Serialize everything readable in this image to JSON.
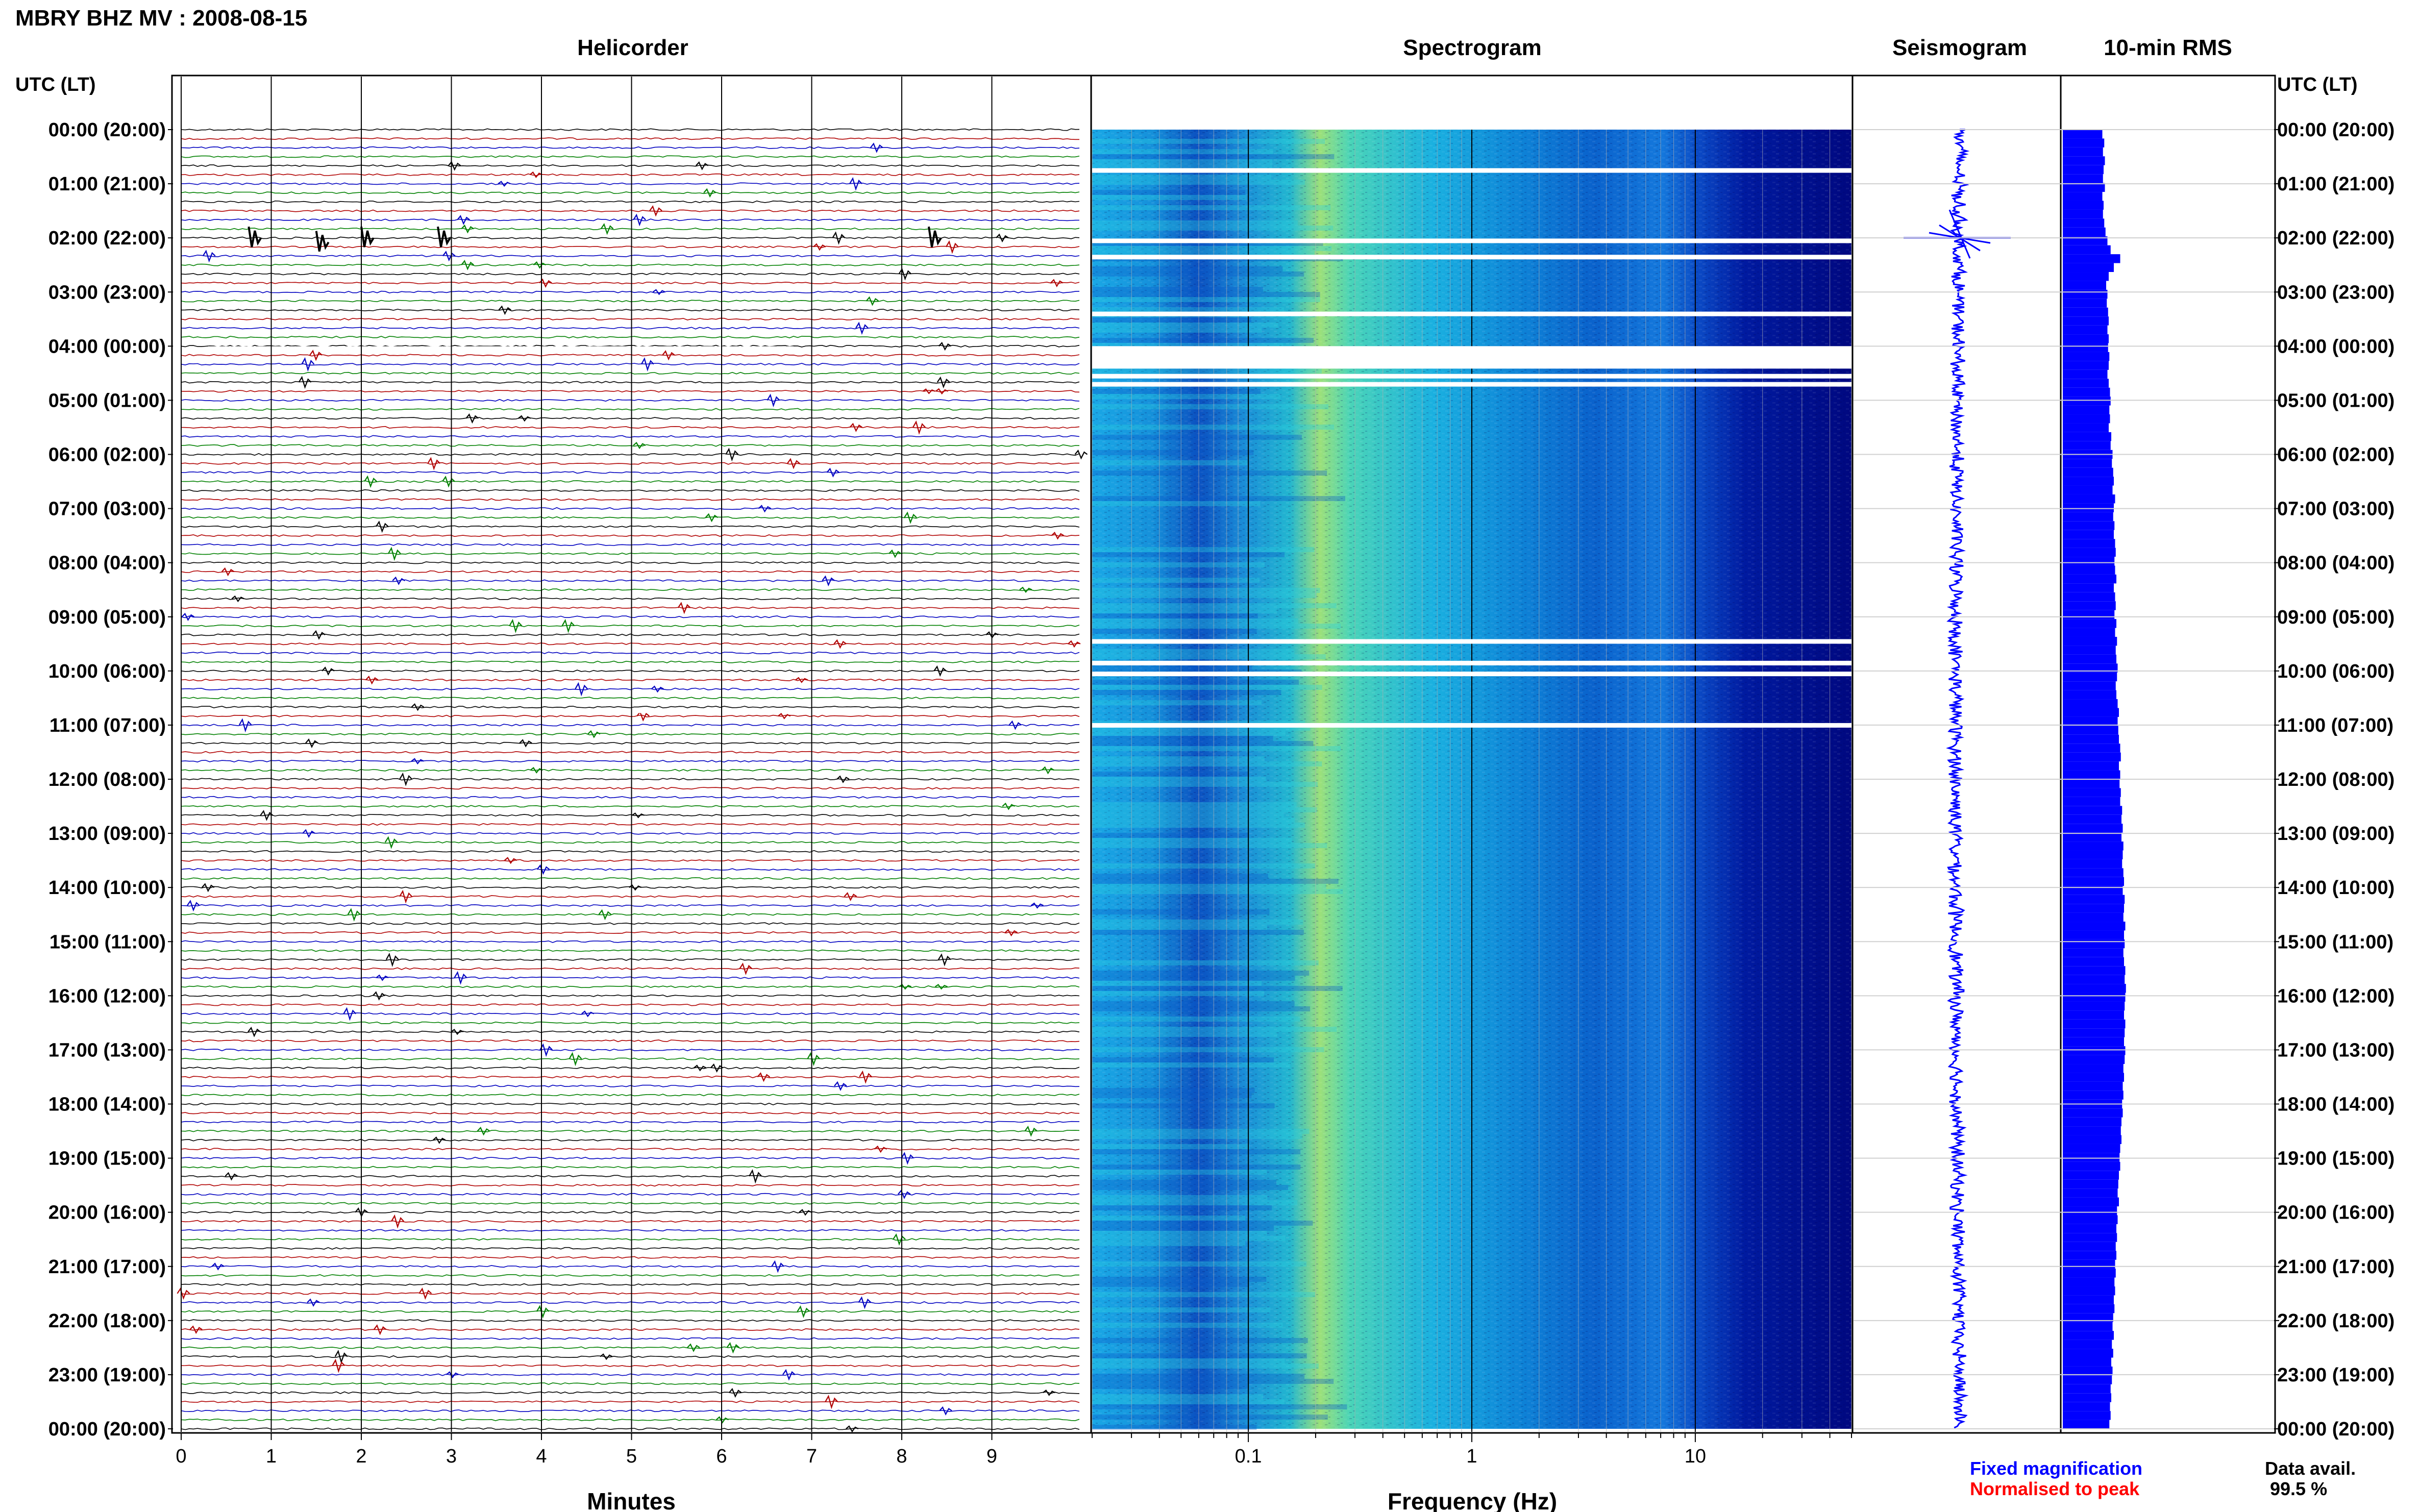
{
  "header": {
    "title": "MBRY BHZ MV : 2008-08-15",
    "utc_label_left": "UTC (LT)",
    "utc_label_right": "UTC (LT)"
  },
  "panels": {
    "helicorder": "Helicorder",
    "spectrogram": "Spectrogram",
    "seismogram": "Seismogram",
    "rms": "10-min RMS"
  },
  "legend": {
    "fixed": "Fixed magnification",
    "normalised": "Normalised to peak",
    "avail_label": "Data avail.",
    "avail_value": "99.5 %"
  },
  "colors": {
    "fixed": "#0000ff",
    "normalised": "#ff0000",
    "trace_cycle": [
      "#000000",
      "#b00000",
      "#0000c0",
      "#008000"
    ],
    "rms_bar": "#0000ff"
  },
  "chart_data": [
    {
      "type": "line",
      "name": "helicorder",
      "title": "Helicorder",
      "xlabel": "Minutes",
      "x_ticks": [
        0,
        1,
        2,
        3,
        4,
        5,
        6,
        7,
        8,
        9
      ],
      "xlim": [
        0,
        10
      ],
      "time_labels": [
        "00:00 (20:00)",
        "01:00 (21:00)",
        "02:00 (22:00)",
        "03:00 (23:00)",
        "04:00 (00:00)",
        "05:00 (01:00)",
        "06:00 (02:00)",
        "07:00 (03:00)",
        "08:00 (04:00)",
        "09:00 (05:00)",
        "10:00 (06:00)",
        "11:00 (07:00)",
        "12:00 (08:00)",
        "13:00 (09:00)",
        "14:00 (10:00)",
        "15:00 (11:00)",
        "16:00 (12:00)",
        "17:00 (13:00)",
        "18:00 (14:00)",
        "19:00 (15:00)",
        "20:00 (16:00)",
        "21:00 (17:00)",
        "22:00 (18:00)",
        "23:00 (19:00)",
        "00:00 (20:00)"
      ]
    },
    {
      "type": "heatmap",
      "name": "spectrogram",
      "title": "Spectrogram",
      "xlabel": "Frequency (Hz)",
      "x_scale": "log",
      "xlim": [
        0.02,
        50
      ],
      "x_ticks": [
        "0.1",
        "1",
        "10"
      ],
      "data_gaps_hours": [
        0.75,
        2.05,
        2.35,
        3.4,
        4.3,
        4.55,
        4.7,
        9.45,
        9.85,
        10.05,
        11.0
      ]
    },
    {
      "type": "line",
      "name": "seismogram",
      "title": "Seismogram",
      "large_event_hour": 2.0
    },
    {
      "type": "bar",
      "name": "rms",
      "title": "10-min RMS",
      "interval_minutes": 10,
      "values": [
        0.62,
        0.65,
        0.63,
        0.66,
        0.64,
        0.63,
        0.66,
        0.62,
        0.64,
        0.63,
        0.65,
        0.67,
        0.7,
        0.75,
        0.9,
        0.8,
        0.72,
        0.68,
        0.7,
        0.69,
        0.71,
        0.72,
        0.7,
        0.72,
        0.71,
        0.73,
        0.72,
        0.7,
        0.72,
        0.74,
        0.75,
        0.73,
        0.74,
        0.72,
        0.76,
        0.75,
        0.78,
        0.77,
        0.79,
        0.8,
        0.78,
        0.82,
        0.8,
        0.79,
        0.81,
        0.8,
        0.82,
        0.83,
        0.81,
        0.82,
        0.84,
        0.8,
        0.82,
        0.83,
        0.81,
        0.84,
        0.82,
        0.85,
        0.83,
        0.84,
        0.86,
        0.85,
        0.83,
        0.84,
        0.86,
        0.88,
        0.86,
        0.87,
        0.88,
        0.9,
        0.91,
        0.88,
        0.9,
        0.89,
        0.91,
        0.9,
        0.93,
        0.92,
        0.94,
        0.92,
        0.95,
        0.94,
        0.93,
        0.95,
        0.96,
        0.94,
        0.97,
        0.96,
        0.95,
        0.98,
        0.96,
        0.97,
        0.95,
        0.96,
        0.98,
        0.97,
        0.99,
        0.98,
        0.97,
        0.96,
        0.98,
        0.97,
        0.96,
        0.98,
        0.97,
        0.95,
        0.96,
        0.94,
        0.95,
        0.93,
        0.94,
        0.92,
        0.91,
        0.92,
        0.9,
        0.89,
        0.9,
        0.88,
        0.87,
        0.86,
        0.88,
        0.85,
        0.86,
        0.84,
        0.85,
        0.83,
        0.84,
        0.82,
        0.83,
        0.81,
        0.82,
        0.8,
        0.81,
        0.79,
        0.78,
        0.8,
        0.77,
        0.79,
        0.76,
        0.78,
        0.77,
        0.75,
        0.76,
        0.74,
        0.75,
        0.73
      ]
    }
  ]
}
